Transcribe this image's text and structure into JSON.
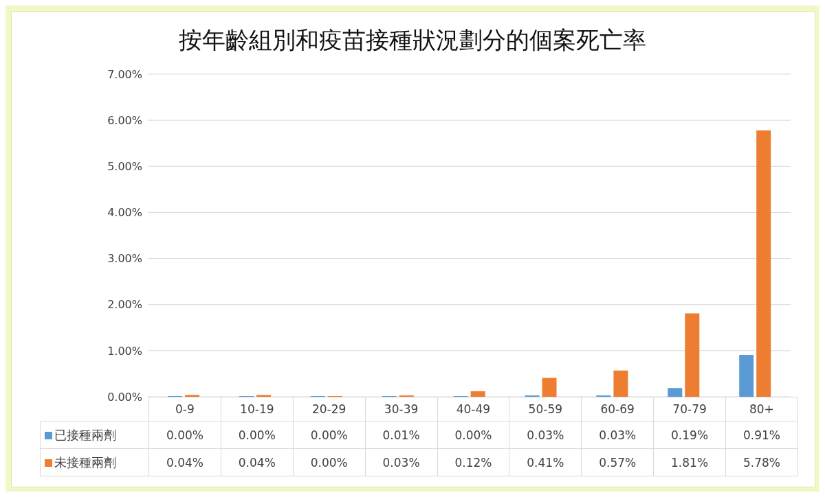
{
  "chart_data": {
    "type": "bar",
    "title": "按年齡組別和疫苗接種狀況劃分的個案死亡率",
    "categories": [
      "0-9",
      "10-19",
      "20-29",
      "30-39",
      "40-49",
      "50-59",
      "60-69",
      "70-79",
      "80+"
    ],
    "series": [
      {
        "name": "已接種兩劑",
        "color": "#5b9bd5",
        "values": [
          0,
          0,
          0,
          0.01,
          0,
          0.03,
          0.03,
          0.19,
          0.91
        ],
        "value_labels": [
          "0.00%",
          "0.00%",
          "0.00%",
          "0.01%",
          "0.00%",
          "0.03%",
          "0.03%",
          "0.19%",
          "0.91%"
        ]
      },
      {
        "name": "未接種兩劑",
        "color": "#ed7d31",
        "values": [
          0.04,
          0.04,
          0,
          0.03,
          0.12,
          0.41,
          0.57,
          1.81,
          5.78
        ],
        "value_labels": [
          "0.04%",
          "0.04%",
          "0.00%",
          "0.03%",
          "0.12%",
          "0.41%",
          "0.57%",
          "1.81%",
          "5.78%"
        ]
      }
    ],
    "ylim": [
      0,
      7
    ],
    "yticks": [
      {
        "value": 0,
        "label": "0.00%"
      },
      {
        "value": 1,
        "label": "1.00%"
      },
      {
        "value": 2,
        "label": "2.00%"
      },
      {
        "value": 3,
        "label": "3.00%"
      },
      {
        "value": 4,
        "label": "4.00%"
      },
      {
        "value": 5,
        "label": "5.00%"
      },
      {
        "value": 6,
        "label": "6.00%"
      },
      {
        "value": 7,
        "label": "7.00%"
      }
    ],
    "grid": "y",
    "legend": "bottom"
  }
}
